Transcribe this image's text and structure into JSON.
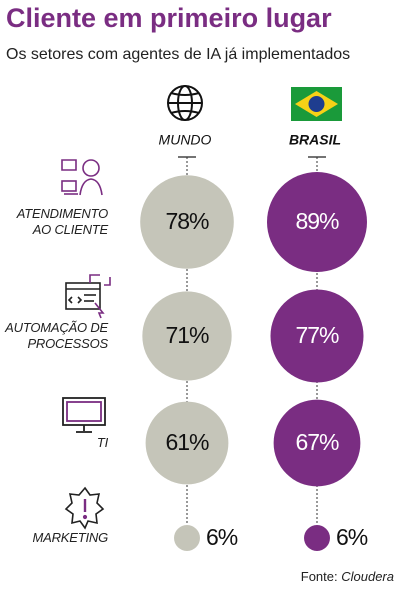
{
  "chart_data": {
    "type": "bubble",
    "title": "Cliente em primeiro lugar",
    "subtitle": "Os setores com agentes de IA já implementados",
    "categories": [
      "ATENDIMENTO AO CLIENTE",
      "AUTOMAÇÃO DE PROCESSOS",
      "TI",
      "MARKETING"
    ],
    "series": [
      {
        "name": "MUNDO",
        "color": "#c5c5b9",
        "values": [
          78,
          71,
          61,
          6
        ],
        "value_labels": [
          "78%",
          "71%",
          "61%",
          "6%"
        ]
      },
      {
        "name": "BRASIL",
        "color": "#7a2d82",
        "values": [
          89,
          77,
          67,
          6
        ],
        "value_labels": [
          "89%",
          "77%",
          "67%",
          "6%"
        ]
      }
    ],
    "source_label": "Fonte:",
    "source": "Cloudera"
  }
}
